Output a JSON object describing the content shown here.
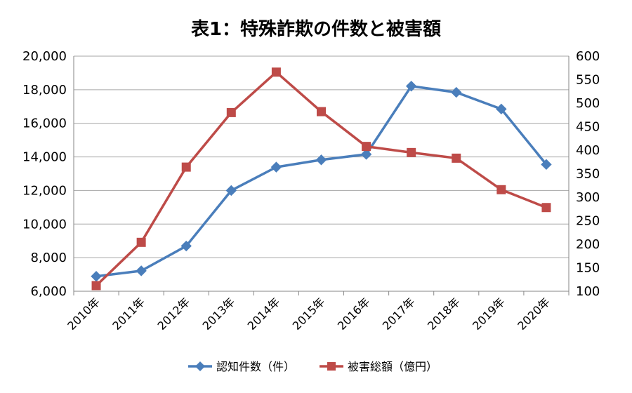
{
  "chart_data": {
    "type": "line",
    "title": "表1：特殊詐欺の件数と被害額",
    "categories": [
      "2010年",
      "2011年",
      "2012年",
      "2013年",
      "2014年",
      "2015年",
      "2016年",
      "2017年",
      "2018年",
      "2019年",
      "2020年"
    ],
    "series": [
      {
        "name": "認知件数（件）",
        "axis": "left",
        "color": "#4a7ebb",
        "marker": "diamond",
        "values": [
          6888,
          7216,
          8693,
          11998,
          13392,
          13824,
          14154,
          18212,
          17844,
          16851,
          13550
        ]
      },
      {
        "name": "被害総額（億円）",
        "axis": "right",
        "color": "#be4b48",
        "marker": "square",
        "values": [
          112,
          204,
          364,
          480,
          566,
          482,
          408,
          395,
          383,
          316,
          278
        ]
      }
    ],
    "y_left": {
      "range": [
        6000,
        20000
      ],
      "ticks": [
        6000,
        8000,
        10000,
        12000,
        14000,
        16000,
        18000,
        20000
      ],
      "tick_labels": [
        "6,000",
        "8,000",
        "10,000",
        "12,000",
        "14,000",
        "16,000",
        "18,000",
        "20,000"
      ]
    },
    "y_right": {
      "range": [
        100,
        600
      ],
      "ticks": [
        100,
        150,
        200,
        250,
        300,
        350,
        400,
        450,
        500,
        550,
        600
      ],
      "tick_labels": [
        "100",
        "150",
        "200",
        "250",
        "300",
        "350",
        "400",
        "450",
        "500",
        "550",
        "600"
      ]
    },
    "grid": true,
    "legend_position": "bottom"
  }
}
